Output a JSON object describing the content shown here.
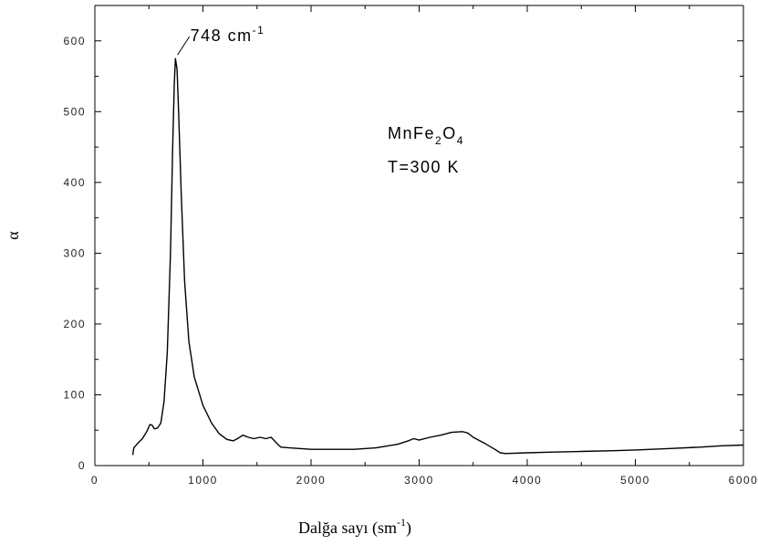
{
  "chart_data": {
    "type": "line",
    "xlabel": "Dalğa sayı  (sm",
    "xlabel_sup": "-1",
    "xlabel_end": ")",
    "ylabel": "α",
    "xlim": [
      0,
      6000
    ],
    "ylim": [
      0,
      650
    ],
    "x_ticks": [
      0,
      1000,
      2000,
      3000,
      4000,
      5000,
      6000
    ],
    "y_ticks": [
      0,
      100,
      200,
      300,
      400,
      500,
      600
    ],
    "grid": false,
    "peak_label": {
      "text": "748 cm",
      "sup": "-1",
      "x": 748,
      "y": 575
    },
    "annotation_compound": {
      "base": "MnFe",
      "sub1": "2",
      "mid": "O",
      "sub2": "4"
    },
    "annotation_temperature": "T=300 K",
    "series": [
      {
        "color": "#000000",
        "points": [
          [
            350,
            15
          ],
          [
            360,
            25
          ],
          [
            400,
            32
          ],
          [
            440,
            38
          ],
          [
            480,
            48
          ],
          [
            510,
            58
          ],
          [
            530,
            57
          ],
          [
            550,
            52
          ],
          [
            580,
            53
          ],
          [
            610,
            60
          ],
          [
            640,
            90
          ],
          [
            670,
            160
          ],
          [
            700,
            300
          ],
          [
            720,
            450
          ],
          [
            735,
            540
          ],
          [
            745,
            575
          ],
          [
            750,
            570
          ],
          [
            760,
            560
          ],
          [
            775,
            500
          ],
          [
            800,
            380
          ],
          [
            830,
            260
          ],
          [
            870,
            175
          ],
          [
            920,
            125
          ],
          [
            1000,
            85
          ],
          [
            1080,
            60
          ],
          [
            1150,
            45
          ],
          [
            1220,
            37
          ],
          [
            1280,
            35
          ],
          [
            1320,
            38
          ],
          [
            1370,
            43
          ],
          [
            1420,
            40
          ],
          [
            1470,
            38
          ],
          [
            1530,
            40
          ],
          [
            1580,
            38
          ],
          [
            1630,
            40
          ],
          [
            1680,
            32
          ],
          [
            1720,
            26
          ],
          [
            1800,
            25
          ],
          [
            2000,
            23
          ],
          [
            2200,
            23
          ],
          [
            2400,
            23
          ],
          [
            2600,
            25
          ],
          [
            2800,
            30
          ],
          [
            2900,
            35
          ],
          [
            2950,
            38
          ],
          [
            3000,
            36
          ],
          [
            3100,
            40
          ],
          [
            3200,
            43
          ],
          [
            3300,
            47
          ],
          [
            3400,
            48
          ],
          [
            3450,
            46
          ],
          [
            3500,
            40
          ],
          [
            3600,
            32
          ],
          [
            3700,
            23
          ],
          [
            3750,
            18
          ],
          [
            3800,
            17
          ],
          [
            4000,
            18
          ],
          [
            4200,
            19
          ],
          [
            4500,
            20
          ],
          [
            4800,
            21
          ],
          [
            5000,
            22
          ],
          [
            5300,
            24
          ],
          [
            5600,
            26
          ],
          [
            5800,
            28
          ],
          [
            6000,
            29
          ]
        ]
      }
    ]
  }
}
